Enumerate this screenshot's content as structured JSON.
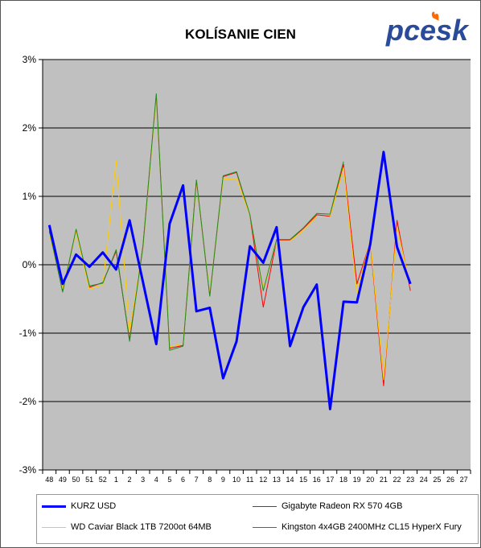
{
  "title": "KOLÍSANIE CIEN",
  "logo_text": "pcesk",
  "chart_data": {
    "type": "line",
    "categories": [
      "48",
      "49",
      "50",
      "51",
      "52",
      "1",
      "2",
      "3",
      "4",
      "5",
      "6",
      "7",
      "8",
      "9",
      "10",
      "11",
      "12",
      "13",
      "14",
      "15",
      "16",
      "17",
      "18",
      "19",
      "20",
      "21",
      "22",
      "23",
      "24",
      "25",
      "26",
      "27"
    ],
    "ylim": [
      -3,
      3
    ],
    "yticks": [
      -3,
      -2,
      -1,
      0,
      1,
      2,
      3
    ],
    "ytick_labels": [
      "-3%",
      "-2%",
      "-1%",
      "0%",
      "1%",
      "2%",
      "3%"
    ],
    "grid": true,
    "legend_position": "bottom",
    "series": [
      {
        "name": "KURZ USD",
        "color": "#0000ff",
        "width": 3,
        "values": [
          0.58,
          -0.28,
          0.15,
          -0.03,
          0.18,
          -0.07,
          0.65,
          -0.25,
          -1.16,
          0.6,
          1.16,
          -0.68,
          -0.63,
          -1.66,
          -1.12,
          0.27,
          0.03,
          0.55,
          -1.19,
          -0.62,
          -0.29,
          -2.11,
          -0.54,
          -0.55,
          0.3,
          1.65,
          0.26,
          -0.28,
          null,
          null,
          null,
          null
        ]
      },
      {
        "name": "Gigabyte Radeon RX 570 4GB",
        "color": "#ff0000",
        "width": 1,
        "values": [
          0.48,
          -0.38,
          0.5,
          -0.33,
          -0.26,
          0.2,
          -1.1,
          0.27,
          2.48,
          -1.22,
          -1.18,
          1.23,
          -0.45,
          1.29,
          1.35,
          0.72,
          -0.62,
          0.36,
          0.36,
          0.53,
          0.73,
          0.71,
          1.47,
          -0.28,
          0.33,
          -1.77,
          0.65,
          -0.38,
          null,
          null,
          null,
          null
        ]
      },
      {
        "name": "WD Caviar Black 1TB 7200ot 64MB",
        "color": "#ffcc00",
        "width": 1,
        "values": [
          0.45,
          -0.35,
          0.48,
          -0.36,
          -0.3,
          1.52,
          -0.98,
          0.24,
          2.45,
          -1.2,
          -1.15,
          1.2,
          -0.42,
          1.25,
          1.26,
          0.72,
          -0.35,
          0.35,
          0.35,
          0.5,
          0.7,
          0.7,
          1.42,
          -0.42,
          0.36,
          -1.68,
          0.55,
          -0.32,
          null,
          null,
          null,
          null
        ]
      },
      {
        "name": "Kingston 4x4GB 2400MHz CL15 HyperX Fury",
        "color": "#228b22",
        "width": 1,
        "values": [
          0.5,
          -0.4,
          0.52,
          -0.31,
          -0.27,
          0.22,
          -1.12,
          0.26,
          2.5,
          -1.25,
          -1.19,
          1.24,
          -0.46,
          1.3,
          1.36,
          0.73,
          -0.38,
          0.37,
          0.37,
          0.54,
          0.75,
          0.74,
          1.51,
          null,
          null,
          null,
          null,
          null,
          null,
          null,
          null,
          null
        ]
      }
    ]
  }
}
